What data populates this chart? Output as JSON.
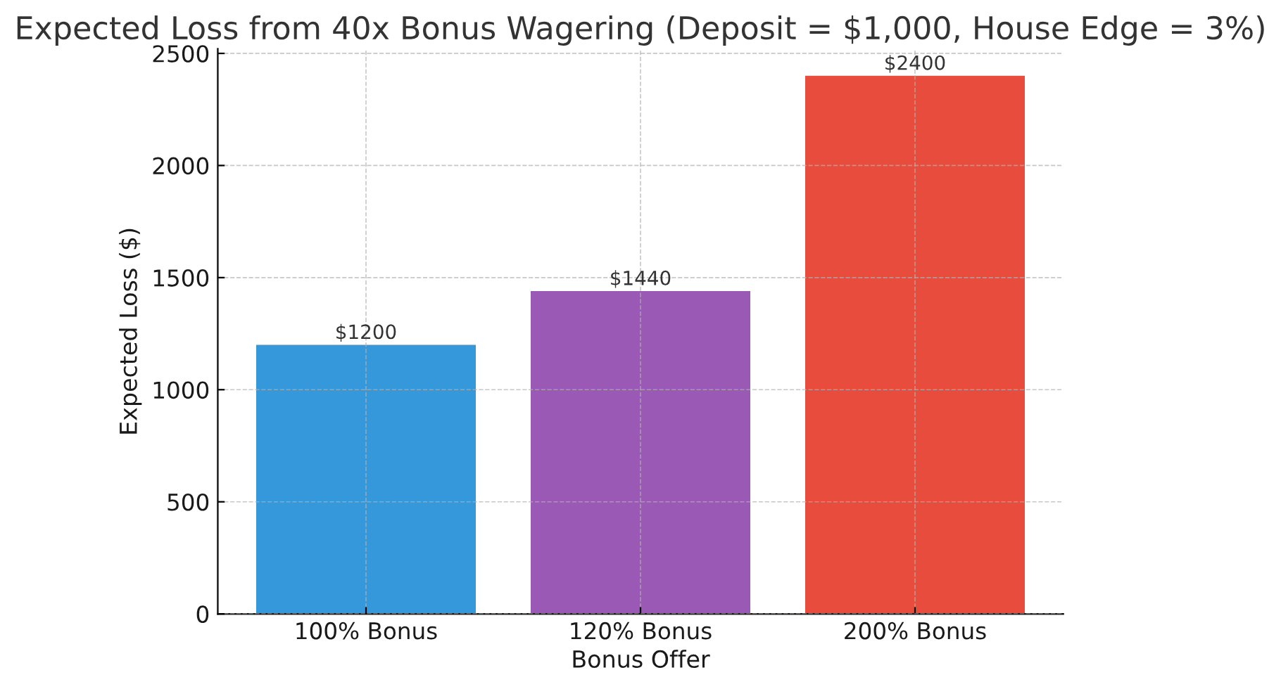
{
  "chart_data": {
    "type": "bar",
    "title": "Expected Loss from 40x Bonus Wagering (Deposit = $1,000, House Edge = 3%)",
    "xlabel": "Bonus Offer",
    "ylabel": "Expected Loss ($)",
    "categories": [
      "100% Bonus",
      "120% Bonus",
      "200% Bonus"
    ],
    "values": [
      1200,
      1440,
      2400
    ],
    "colors": [
      "#3498db",
      "#9b59b6",
      "#e74c3c"
    ],
    "value_labels": [
      "$1200",
      "$1440",
      "$2400"
    ],
    "ylim": [
      0,
      2520
    ],
    "yticks": [
      0,
      500,
      1000,
      1500,
      2000,
      2500
    ],
    "grid": true
  }
}
